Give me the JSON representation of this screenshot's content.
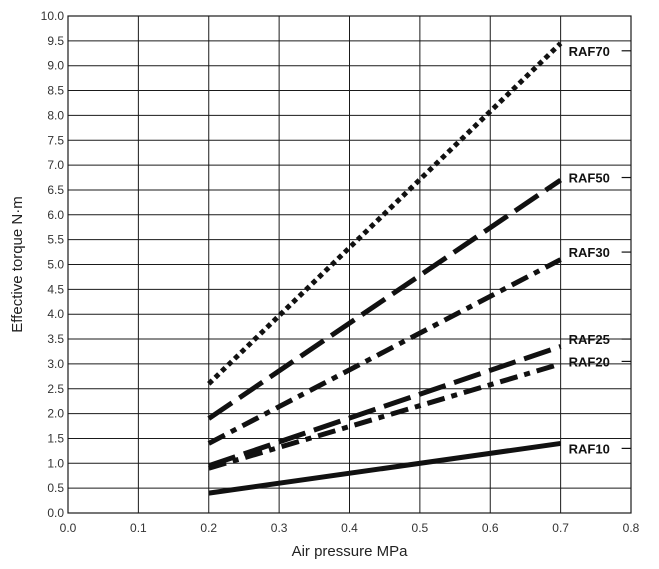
{
  "chart_data": {
    "type": "line",
    "title": "",
    "xlabel": "Air pressure MPa",
    "ylabel": "Effective torque N·m",
    "xlim": [
      0.0,
      0.8
    ],
    "ylim": [
      0.0,
      10.0
    ],
    "x_ticks": [
      "0.0",
      "0.1",
      "0.2",
      "0.3",
      "0.4",
      "0.5",
      "0.6",
      "0.7",
      "0.8"
    ],
    "y_ticks": [
      "0.0",
      "0.5",
      "1.0",
      "1.5",
      "2.0",
      "2.5",
      "3.0",
      "3.5",
      "4.0",
      "4.5",
      "5.0",
      "5.5",
      "6.0",
      "6.5",
      "7.0",
      "7.5",
      "8.0",
      "8.5",
      "9.0",
      "9.5",
      "10.0"
    ],
    "grid": true,
    "legend": "inline labels at right end of each line",
    "series": [
      {
        "name": "RAF70",
        "style": "dotted",
        "x": [
          0.2,
          0.7
        ],
        "y": [
          2.6,
          9.45
        ],
        "label_y": 9.3
      },
      {
        "name": "RAF50",
        "style": "long-dash",
        "x": [
          0.2,
          0.7
        ],
        "y": [
          1.9,
          6.7
        ],
        "label_y": 6.75
      },
      {
        "name": "RAF30",
        "style": "dash-dot",
        "x": [
          0.2,
          0.7
        ],
        "y": [
          1.4,
          5.1
        ],
        "label_y": 5.25
      },
      {
        "name": "RAF25",
        "style": "long-dash",
        "x": [
          0.2,
          0.7
        ],
        "y": [
          0.95,
          3.35
        ],
        "label_y": 3.5
      },
      {
        "name": "RAF20",
        "style": "dash-dot",
        "x": [
          0.2,
          0.7
        ],
        "y": [
          0.9,
          3.0
        ],
        "label_y": 3.05
      },
      {
        "name": "RAF10",
        "style": "solid",
        "x": [
          0.2,
          0.7
        ],
        "y": [
          0.4,
          1.4
        ],
        "label_y": 1.3
      }
    ]
  }
}
